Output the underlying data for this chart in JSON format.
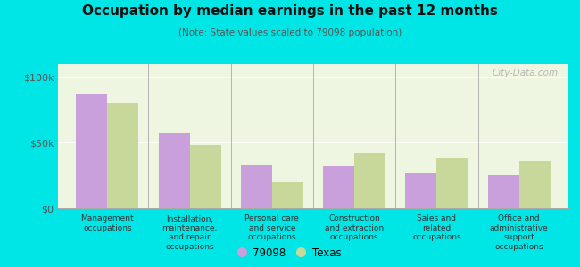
{
  "title": "Occupation by median earnings in the past 12 months",
  "subtitle": "(Note: State values scaled to 79098 population)",
  "categories": [
    "Management\noccupations",
    "Installation,\nmaintenance,\nand repair\noccupations",
    "Personal care\nand service\noccupations",
    "Construction\nand extraction\noccupations",
    "Sales and\nrelated\noccupations",
    "Office and\nadministrative\nsupport\noccupations"
  ],
  "values_79098": [
    87000,
    58000,
    33000,
    32000,
    27000,
    25000
  ],
  "values_texas": [
    80000,
    48000,
    20000,
    42000,
    38000,
    36000
  ],
  "color_79098": "#c9a0dc",
  "color_texas": "#c8d89a",
  "background_outer": "#00e5e5",
  "background_plot": "#eef5e0",
  "ylim": [
    0,
    110000
  ],
  "yticks": [
    0,
    50000,
    100000
  ],
  "ytick_labels": [
    "$0",
    "$50k",
    "$100k"
  ],
  "legend_labels": [
    "79098",
    "Texas"
  ],
  "bar_width": 0.38,
  "watermark": "City-Data.com"
}
